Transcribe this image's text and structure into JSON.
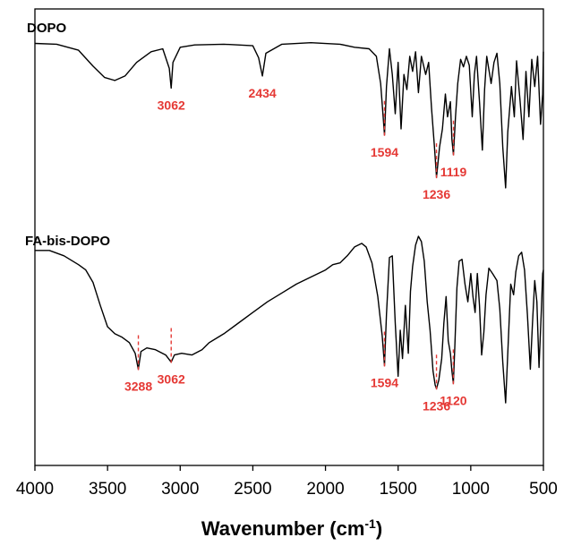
{
  "chart_data": {
    "type": "line",
    "xlabel": "Wavenumber (cm",
    "xlabel_superscript": "-1",
    "xlabel_suffix": ")",
    "xlim": [
      4000,
      500
    ],
    "x_reversed": true,
    "x_ticks": [
      4000,
      3500,
      3000,
      2500,
      2000,
      1500,
      1000,
      500
    ],
    "y_ticks_shown": false,
    "grid": false,
    "line_color": "#000000",
    "annotation_color": "#e53935",
    "series": [
      {
        "name": "DOPO",
        "points": [
          [
            4000,
            0.985
          ],
          [
            3850,
            0.98
          ],
          [
            3700,
            0.94
          ],
          [
            3600,
            0.835
          ],
          [
            3520,
            0.76
          ],
          [
            3450,
            0.74
          ],
          [
            3380,
            0.77
          ],
          [
            3300,
            0.86
          ],
          [
            3200,
            0.93
          ],
          [
            3120,
            0.95
          ],
          [
            3075,
            0.82
          ],
          [
            3062,
            0.69
          ],
          [
            3050,
            0.86
          ],
          [
            3000,
            0.96
          ],
          [
            2900,
            0.975
          ],
          [
            2700,
            0.98
          ],
          [
            2500,
            0.97
          ],
          [
            2460,
            0.89
          ],
          [
            2434,
            0.77
          ],
          [
            2410,
            0.92
          ],
          [
            2300,
            0.98
          ],
          [
            2100,
            0.99
          ],
          [
            1900,
            0.98
          ],
          [
            1800,
            0.96
          ],
          [
            1700,
            0.95
          ],
          [
            1650,
            0.9
          ],
          [
            1620,
            0.72
          ],
          [
            1594,
            0.38
          ],
          [
            1580,
            0.7
          ],
          [
            1560,
            0.95
          ],
          [
            1540,
            0.78
          ],
          [
            1520,
            0.52
          ],
          [
            1500,
            0.86
          ],
          [
            1480,
            0.42
          ],
          [
            1460,
            0.78
          ],
          [
            1440,
            0.68
          ],
          [
            1420,
            0.9
          ],
          [
            1400,
            0.8
          ],
          [
            1380,
            0.93
          ],
          [
            1360,
            0.66
          ],
          [
            1340,
            0.9
          ],
          [
            1310,
            0.78
          ],
          [
            1290,
            0.86
          ],
          [
            1270,
            0.56
          ],
          [
            1250,
            0.3
          ],
          [
            1236,
            0.1
          ],
          [
            1215,
            0.3
          ],
          [
            1195,
            0.42
          ],
          [
            1175,
            0.65
          ],
          [
            1160,
            0.5
          ],
          [
            1140,
            0.6
          ],
          [
            1130,
            0.35
          ],
          [
            1119,
            0.25
          ],
          [
            1105,
            0.5
          ],
          [
            1090,
            0.72
          ],
          [
            1070,
            0.88
          ],
          [
            1050,
            0.83
          ],
          [
            1030,
            0.9
          ],
          [
            1010,
            0.84
          ],
          [
            990,
            0.5
          ],
          [
            975,
            0.78
          ],
          [
            960,
            0.9
          ],
          [
            940,
            0.6
          ],
          [
            920,
            0.28
          ],
          [
            905,
            0.68
          ],
          [
            890,
            0.9
          ],
          [
            860,
            0.72
          ],
          [
            840,
            0.86
          ],
          [
            820,
            0.92
          ],
          [
            800,
            0.72
          ],
          [
            780,
            0.3
          ],
          [
            760,
            0.03
          ],
          [
            745,
            0.4
          ],
          [
            720,
            0.7
          ],
          [
            700,
            0.5
          ],
          [
            685,
            0.87
          ],
          [
            660,
            0.6
          ],
          [
            640,
            0.35
          ],
          [
            620,
            0.8
          ],
          [
            600,
            0.5
          ],
          [
            580,
            0.88
          ],
          [
            560,
            0.7
          ],
          [
            540,
            0.9
          ],
          [
            520,
            0.45
          ],
          [
            505,
            0.65
          ],
          [
            500,
            0.93
          ]
        ]
      },
      {
        "name": "FA-bis-DOPO",
        "points": [
          [
            4000,
            0.91
          ],
          [
            3900,
            0.91
          ],
          [
            3800,
            0.88
          ],
          [
            3700,
            0.83
          ],
          [
            3650,
            0.8
          ],
          [
            3600,
            0.73
          ],
          [
            3550,
            0.6
          ],
          [
            3500,
            0.48
          ],
          [
            3450,
            0.44
          ],
          [
            3400,
            0.42
          ],
          [
            3350,
            0.39
          ],
          [
            3310,
            0.33
          ],
          [
            3288,
            0.24
          ],
          [
            3270,
            0.34
          ],
          [
            3230,
            0.36
          ],
          [
            3170,
            0.35
          ],
          [
            3100,
            0.32
          ],
          [
            3062,
            0.28
          ],
          [
            3040,
            0.32
          ],
          [
            2990,
            0.33
          ],
          [
            2920,
            0.32
          ],
          [
            2850,
            0.35
          ],
          [
            2800,
            0.39
          ],
          [
            2700,
            0.44
          ],
          [
            2600,
            0.5
          ],
          [
            2500,
            0.56
          ],
          [
            2400,
            0.62
          ],
          [
            2300,
            0.67
          ],
          [
            2200,
            0.72
          ],
          [
            2100,
            0.76
          ],
          [
            2000,
            0.8
          ],
          [
            1950,
            0.83
          ],
          [
            1900,
            0.84
          ],
          [
            1850,
            0.88
          ],
          [
            1800,
            0.93
          ],
          [
            1750,
            0.95
          ],
          [
            1720,
            0.93
          ],
          [
            1680,
            0.84
          ],
          [
            1640,
            0.65
          ],
          [
            1610,
            0.43
          ],
          [
            1594,
            0.26
          ],
          [
            1580,
            0.55
          ],
          [
            1560,
            0.87
          ],
          [
            1540,
            0.88
          ],
          [
            1520,
            0.5
          ],
          [
            1500,
            0.2
          ],
          [
            1485,
            0.46
          ],
          [
            1470,
            0.3
          ],
          [
            1450,
            0.6
          ],
          [
            1430,
            0.33
          ],
          [
            1415,
            0.68
          ],
          [
            1400,
            0.82
          ],
          [
            1380,
            0.94
          ],
          [
            1360,
            0.99
          ],
          [
            1340,
            0.96
          ],
          [
            1320,
            0.85
          ],
          [
            1300,
            0.62
          ],
          [
            1280,
            0.46
          ],
          [
            1260,
            0.23
          ],
          [
            1245,
            0.15
          ],
          [
            1236,
            0.13
          ],
          [
            1220,
            0.18
          ],
          [
            1200,
            0.3
          ],
          [
            1185,
            0.5
          ],
          [
            1170,
            0.65
          ],
          [
            1155,
            0.4
          ],
          [
            1140,
            0.33
          ],
          [
            1130,
            0.23
          ],
          [
            1120,
            0.16
          ],
          [
            1110,
            0.36
          ],
          [
            1095,
            0.7
          ],
          [
            1080,
            0.85
          ],
          [
            1060,
            0.86
          ],
          [
            1040,
            0.72
          ],
          [
            1020,
            0.62
          ],
          [
            1000,
            0.78
          ],
          [
            985,
            0.65
          ],
          [
            970,
            0.56
          ],
          [
            955,
            0.78
          ],
          [
            940,
            0.6
          ],
          [
            925,
            0.32
          ],
          [
            910,
            0.45
          ],
          [
            895,
            0.66
          ],
          [
            875,
            0.81
          ],
          [
            850,
            0.78
          ],
          [
            820,
            0.74
          ],
          [
            800,
            0.58
          ],
          [
            780,
            0.28
          ],
          [
            760,
            0.05
          ],
          [
            745,
            0.33
          ],
          [
            725,
            0.72
          ],
          [
            705,
            0.66
          ],
          [
            690,
            0.79
          ],
          [
            670,
            0.88
          ],
          [
            650,
            0.9
          ],
          [
            630,
            0.8
          ],
          [
            610,
            0.55
          ],
          [
            590,
            0.24
          ],
          [
            575,
            0.5
          ],
          [
            560,
            0.74
          ],
          [
            545,
            0.62
          ],
          [
            530,
            0.25
          ],
          [
            515,
            0.56
          ],
          [
            505,
            0.78
          ],
          [
            500,
            0.8
          ]
        ]
      }
    ],
    "annotations": [
      {
        "series": "DOPO",
        "label": "3062",
        "x": 3062,
        "marker": false
      },
      {
        "series": "DOPO",
        "label": "2434",
        "x": 2434,
        "marker": false
      },
      {
        "series": "DOPO",
        "label": "1594",
        "x": 1594,
        "marker": true
      },
      {
        "series": "DOPO",
        "label": "1236",
        "x": 1236,
        "marker": true
      },
      {
        "series": "DOPO",
        "label": "1119",
        "x": 1119,
        "marker": true
      },
      {
        "series": "FA-bis-DOPO",
        "label": "3288",
        "x": 3288,
        "marker": true
      },
      {
        "series": "FA-bis-DOPO",
        "label": "3062",
        "x": 3062,
        "marker": true
      },
      {
        "series": "FA-bis-DOPO",
        "label": "1594",
        "x": 1594,
        "marker": true
      },
      {
        "series": "FA-bis-DOPO",
        "label": "1236",
        "x": 1236,
        "marker": true
      },
      {
        "series": "FA-bis-DOPO",
        "label": "1120",
        "x": 1120,
        "marker": true
      }
    ]
  }
}
